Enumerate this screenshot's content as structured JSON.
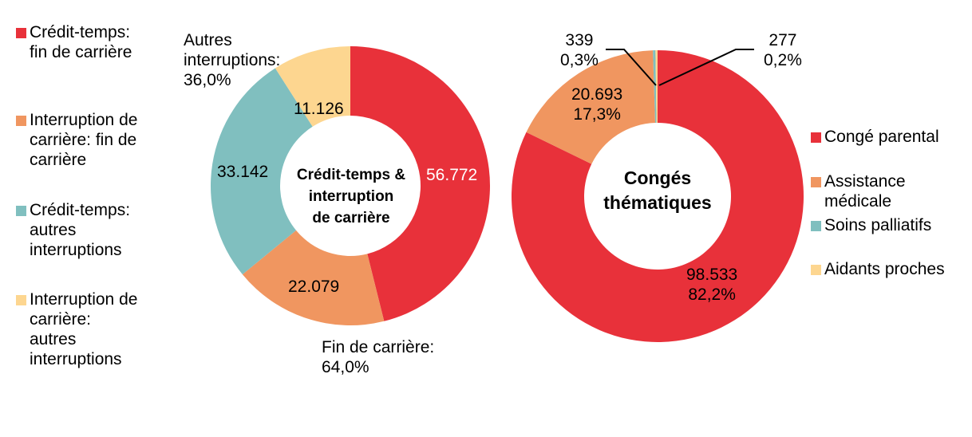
{
  "chart_data": [
    {
      "type": "pie",
      "variant": "donut",
      "title": "Crédit-temps &\ninterruption\nde carrière",
      "categories": [
        "Crédit-temps: fin de carrière",
        "Interruption de carrière: fin de carrière",
        "Crédit-temps: autres interruptions",
        "Interruption de carrière: autres interruptions"
      ],
      "values": [
        56772,
        22079,
        33142,
        11126
      ],
      "value_labels": [
        "56.772",
        "22.079",
        "33.142",
        "11.126"
      ],
      "colors": [
        "#e8313a",
        "#f09660",
        "#80bfbf",
        "#fdd690"
      ],
      "group_annotations": [
        {
          "text": "Fin de carrière:\n64,0%",
          "members": [
            0,
            1
          ],
          "percent": 64.0
        },
        {
          "text": "Autres\ninterruptions:\n36,0%",
          "members": [
            2,
            3
          ],
          "percent": 36.0
        }
      ],
      "legend_position": "left"
    },
    {
      "type": "pie",
      "variant": "donut",
      "title": "Congés\nthématiques",
      "categories": [
        "Congé parental",
        "Assistance médicale",
        "Soins palliatifs",
        "Aidants proches"
      ],
      "values": [
        98533,
        20693,
        339,
        277
      ],
      "percentages": [
        82.2,
        17.3,
        0.3,
        0.2
      ],
      "value_labels": [
        "98.533\n82,2%",
        "20.693\n17,3%",
        "339\n0,3%",
        "277\n0,2%"
      ],
      "colors": [
        "#e8313a",
        "#f09660",
        "#80bfbf",
        "#fdd690"
      ],
      "legend_position": "right"
    }
  ],
  "left_chart": {
    "center_title": "Crédit-temps &\ninterruption\nde carrière",
    "legend": [
      {
        "label": "Crédit-temps:\nfin de carrière",
        "color": "#e8313a"
      },
      {
        "label": "Interruption de\ncarrière: fin de\ncarrière",
        "color": "#f09660"
      },
      {
        "label": "Crédit-temps:\nautres\ninterruptions",
        "color": "#80bfbf"
      },
      {
        "label": "Interruption de\ncarrière:\nautres\ninterruptions",
        "color": "#fdd690"
      }
    ],
    "slice_labels": {
      "credit_fin": "56.772",
      "interruption_fin": "22.079",
      "credit_autres": "33.142",
      "interruption_autres": "11.126"
    },
    "annotations": {
      "autres": "Autres\ninterruptions:\n36,0%",
      "fin": "Fin de carrière:\n64,0%"
    }
  },
  "right_chart": {
    "center_title": "Congés\nthématiques",
    "legend": [
      {
        "label": "Congé parental",
        "color": "#e8313a"
      },
      {
        "label": "Assistance\nmédicale",
        "color": "#f09660"
      },
      {
        "label": "Soins palliatifs",
        "color": "#80bfbf"
      },
      {
        "label": "Aidants proches",
        "color": "#fdd690"
      }
    ],
    "slice_labels": {
      "parental": "98.533\n82,2%",
      "assistance": "20.693\n17,3%",
      "palliatifs": "339\n0,3%",
      "aidants": "277\n0,2%"
    }
  }
}
